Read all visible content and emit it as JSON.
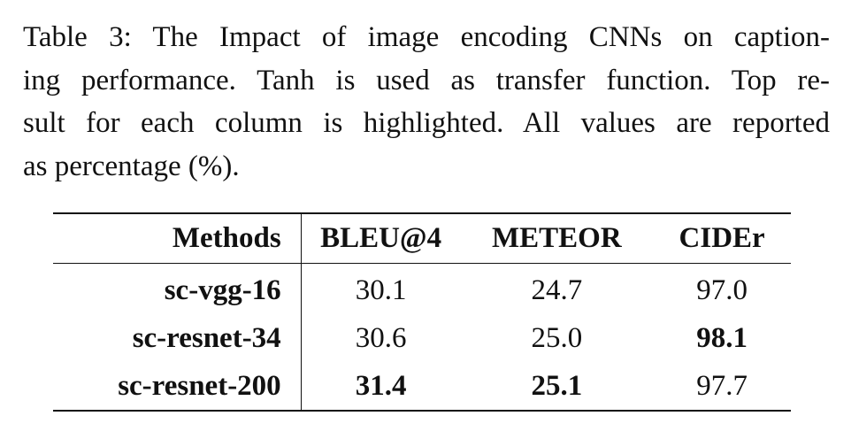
{
  "caption": {
    "lines": [
      "Table 3: The Impact of image encoding CNNs on caption-",
      "ing performance. Tanh is used as transfer function. Top re-",
      "sult for each column is highlighted. All values are reported",
      "as percentage (%)."
    ]
  },
  "table": {
    "headers": [
      "Methods",
      "BLEU@4",
      "METEOR",
      "CIDEr"
    ],
    "rows": [
      {
        "method": "sc-vgg-16",
        "bleu4": "30.1",
        "meteor": "24.7",
        "cider": "97.0"
      },
      {
        "method": "sc-resnet-34",
        "bleu4": "30.6",
        "meteor": "25.0",
        "cider": "98.1"
      },
      {
        "method": "sc-resnet-200",
        "bleu4": "31.4",
        "meteor": "25.1",
        "cider": "97.7"
      }
    ],
    "highlighted": {
      "bleu4": "sc-resnet-200",
      "meteor": "sc-resnet-200",
      "cider": "sc-resnet-34"
    }
  }
}
